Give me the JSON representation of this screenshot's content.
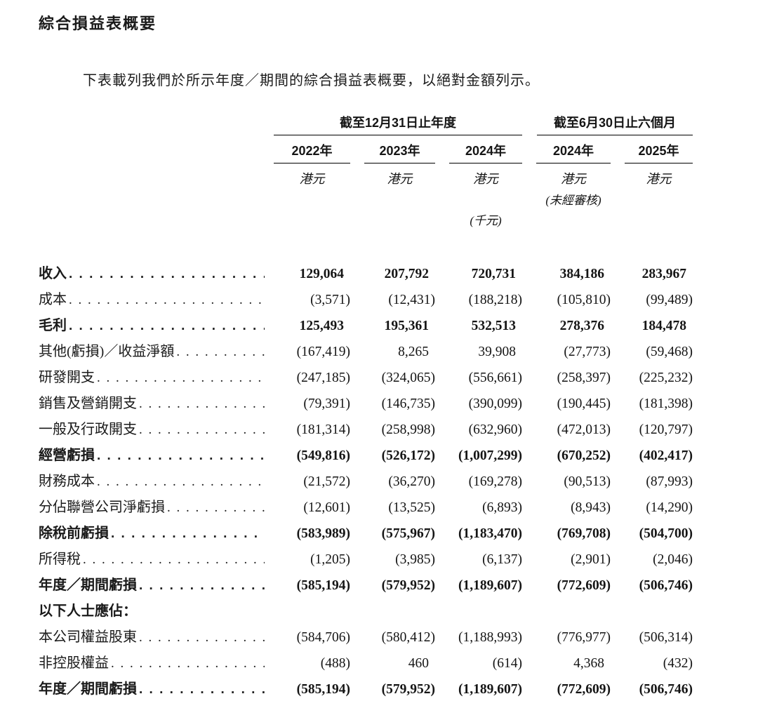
{
  "title": "綜合損益表概要",
  "intro": "下表載列我們於所示年度／期間的綜合損益表概要，以絕對金額列示。",
  "colors": {
    "background": "#ffffff",
    "text": "#1a1a1a",
    "rule": "#000000"
  },
  "table": {
    "col_groups": [
      {
        "label": "截至12月31日止年度",
        "span": 3
      },
      {
        "label": "截至6月30日止六個月",
        "span": 2
      }
    ],
    "years": [
      "2022年",
      "2023年",
      "2024年",
      "2024年",
      "2025年"
    ],
    "currency_label": "港元",
    "unaudited_note": "(未經審核)",
    "unit_note": "(千元)",
    "rows": [
      {
        "label": "收入",
        "bold": true,
        "dots": true,
        "values": [
          "129,064",
          "207,792",
          "720,731",
          "384,186",
          "283,967"
        ]
      },
      {
        "label": "成本",
        "bold": false,
        "dots": true,
        "values": [
          "(3,571)",
          "(12,431)",
          "(188,218)",
          "(105,810)",
          "(99,489)"
        ]
      },
      {
        "label": "毛利",
        "bold": true,
        "dots": true,
        "values": [
          "125,493",
          "195,361",
          "532,513",
          "278,376",
          "184,478"
        ]
      },
      {
        "label": "其他(虧損)／收益淨額",
        "bold": false,
        "dots": true,
        "values": [
          "(167,419)",
          "8,265",
          "39,908",
          "(27,773)",
          "(59,468)"
        ]
      },
      {
        "label": "研發開支",
        "bold": false,
        "dots": true,
        "values": [
          "(247,185)",
          "(324,065)",
          "(556,661)",
          "(258,397)",
          "(225,232)"
        ]
      },
      {
        "label": "銷售及營銷開支",
        "bold": false,
        "dots": true,
        "values": [
          "(79,391)",
          "(146,735)",
          "(390,099)",
          "(190,445)",
          "(181,398)"
        ]
      },
      {
        "label": "一般及行政開支",
        "bold": false,
        "dots": true,
        "values": [
          "(181,314)",
          "(258,998)",
          "(632,960)",
          "(472,013)",
          "(120,797)"
        ]
      },
      {
        "label": "經營虧損",
        "bold": true,
        "dots": true,
        "values": [
          "(549,816)",
          "(526,172)",
          "(1,007,299)",
          "(670,252)",
          "(402,417)"
        ]
      },
      {
        "label": "財務成本",
        "bold": false,
        "dots": true,
        "values": [
          "(21,572)",
          "(36,270)",
          "(169,278)",
          "(90,513)",
          "(87,993)"
        ]
      },
      {
        "label": "分佔聯營公司淨虧損",
        "bold": false,
        "dots": true,
        "values": [
          "(12,601)",
          "(13,525)",
          "(6,893)",
          "(8,943)",
          "(14,290)"
        ]
      },
      {
        "label": "除稅前虧損",
        "bold": true,
        "dots": true,
        "values": [
          "(583,989)",
          "(575,967)",
          "(1,183,470)",
          "(769,708)",
          "(504,700)"
        ]
      },
      {
        "label": "所得稅",
        "bold": false,
        "dots": true,
        "values": [
          "(1,205)",
          "(3,985)",
          "(6,137)",
          "(2,901)",
          "(2,046)"
        ]
      },
      {
        "label": "年度／期間虧損",
        "bold": true,
        "dots": true,
        "values": [
          "(585,194)",
          "(579,952)",
          "(1,189,607)",
          "(772,609)",
          "(506,746)"
        ]
      },
      {
        "label": "以下人士應佔：",
        "bold": true,
        "dots": false,
        "values": null
      },
      {
        "label": "本公司權益股東",
        "bold": false,
        "dots": true,
        "values": [
          "(584,706)",
          "(580,412)",
          "(1,188,993)",
          "(776,977)",
          "(506,314)"
        ]
      },
      {
        "label": "非控股權益",
        "bold": false,
        "dots": true,
        "values": [
          "(488)",
          "460",
          "(614)",
          "4,368",
          "(432)"
        ]
      },
      {
        "label": "年度／期間虧損",
        "bold": true,
        "dots": true,
        "values": [
          "(585,194)",
          "(579,952)",
          "(1,189,607)",
          "(772,609)",
          "(506,746)"
        ]
      }
    ]
  }
}
